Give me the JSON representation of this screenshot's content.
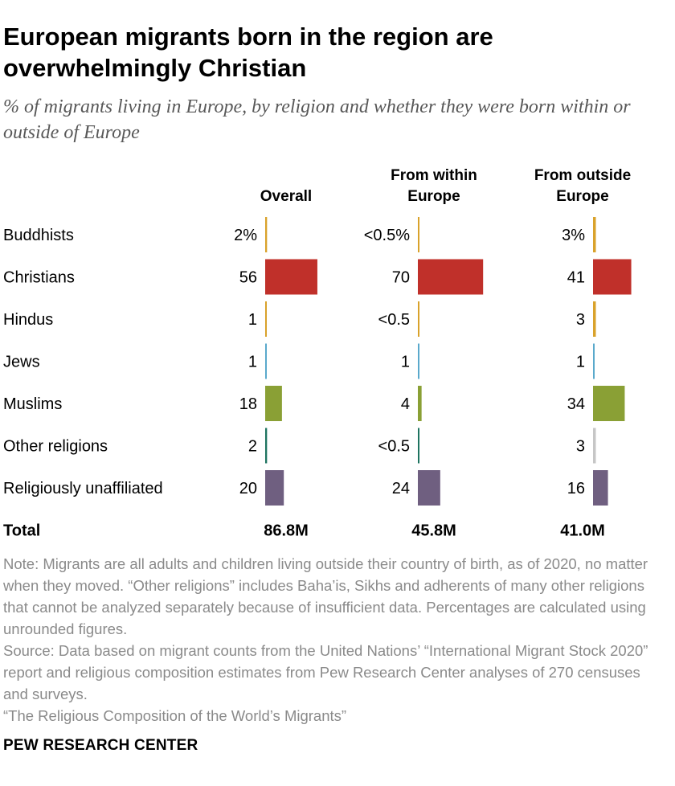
{
  "title": "European migrants born in the region are overwhelmingly Christian",
  "subtitle": "% of migrants living in Europe, by religion and whether they were born within or outside of Europe",
  "chart_data": {
    "type": "bar",
    "orientation": "horizontal",
    "categories": [
      "Buddhists",
      "Christians",
      "Hindus",
      "Jews",
      "Muslims",
      "Other religions",
      "Religiously unaffiliated"
    ],
    "category_colors": [
      "#d9a22b",
      "#c0302a",
      "#d9a22b",
      "#5aa9cc",
      "#8aa035",
      "#1e7460",
      "#6f5f80"
    ],
    "columns": [
      {
        "name": "Overall",
        "values": [
          2,
          56,
          1,
          1,
          18,
          2,
          20
        ],
        "labels": [
          "2%",
          "56",
          "1",
          "1",
          "18",
          "2",
          "20"
        ],
        "total": "86.8M"
      },
      {
        "name": "From within Europe",
        "values": [
          0.2,
          70,
          0.2,
          1,
          4,
          0.2,
          24
        ],
        "labels": [
          "<0.5%",
          "70",
          "<0.5",
          "1",
          "4",
          "<0.5",
          "24"
        ],
        "total": "45.8M"
      },
      {
        "name": "From outside Europe",
        "values": [
          3,
          41,
          3,
          1,
          34,
          3,
          16
        ],
        "labels": [
          "3%",
          "41",
          "3",
          "1",
          "34",
          "3",
          "16"
        ],
        "total": "41.0M",
        "bar_colors": [
          "#d9a22b",
          "#c0302a",
          "#d9a22b",
          "#5aa9cc",
          "#8aa035",
          "#c6c6c6",
          "#6f5f80"
        ]
      }
    ],
    "total_label": "Total",
    "xlim": [
      0,
      100
    ]
  },
  "notes": [
    "Note: Migrants are all adults and children living outside their country of birth, as of 2020, no matter when they moved. “Other religions” includes Baha’is, Sikhs and adherents of many other religions that cannot be analyzed separately because of insufficient data. Percentages are calculated using unrounded figures.",
    "Source: Data based on migrant counts from the United Nations’ “International Migrant Stock 2020” report and religious composition estimates from Pew Research Center analyses of 270 censuses and surveys.",
    "“The Religious Composition of the World’s Migrants”"
  ],
  "brand": "PEW RESEARCH CENTER"
}
